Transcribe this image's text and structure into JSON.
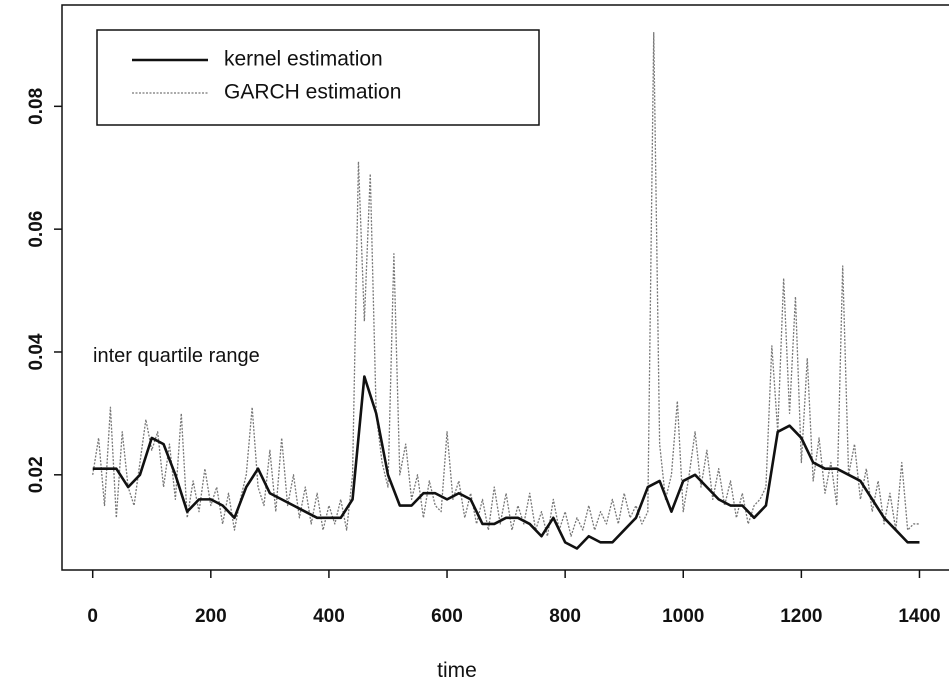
{
  "chart_data": {
    "type": "line",
    "x_label": "time",
    "annotation": "inter quartile range",
    "xlim": [
      -52,
      1450
    ],
    "ylim": [
      0.0045,
      0.0965
    ],
    "xticks": [
      0,
      200,
      400,
      600,
      800,
      1000,
      1200,
      1400
    ],
    "yticks": [
      0.02,
      0.04,
      0.06,
      0.08
    ],
    "legend": "upper left",
    "series": [
      {
        "name": "kernel estimation",
        "color": "#111111",
        "style": "solid",
        "x": [
          0,
          20,
          40,
          60,
          80,
          100,
          120,
          140,
          160,
          180,
          200,
          220,
          240,
          260,
          280,
          300,
          320,
          340,
          360,
          380,
          400,
          420,
          440,
          460,
          480,
          500,
          520,
          540,
          560,
          580,
          600,
          620,
          640,
          660,
          680,
          700,
          720,
          740,
          760,
          780,
          800,
          820,
          840,
          860,
          880,
          900,
          920,
          940,
          960,
          980,
          1000,
          1020,
          1040,
          1060,
          1080,
          1100,
          1120,
          1140,
          1160,
          1180,
          1200,
          1220,
          1240,
          1260,
          1280,
          1300,
          1320,
          1340,
          1360,
          1380,
          1400
        ],
        "values": [
          0.021,
          0.021,
          0.021,
          0.018,
          0.02,
          0.026,
          0.025,
          0.02,
          0.014,
          0.016,
          0.016,
          0.015,
          0.013,
          0.018,
          0.021,
          0.017,
          0.016,
          0.015,
          0.014,
          0.013,
          0.013,
          0.013,
          0.016,
          0.036,
          0.03,
          0.02,
          0.015,
          0.015,
          0.017,
          0.017,
          0.016,
          0.017,
          0.016,
          0.012,
          0.012,
          0.013,
          0.013,
          0.012,
          0.01,
          0.013,
          0.009,
          0.008,
          0.01,
          0.009,
          0.009,
          0.011,
          0.013,
          0.018,
          0.019,
          0.014,
          0.019,
          0.02,
          0.018,
          0.016,
          0.015,
          0.015,
          0.013,
          0.015,
          0.027,
          0.028,
          0.026,
          0.022,
          0.021,
          0.021,
          0.02,
          0.019,
          0.016,
          0.013,
          0.011,
          0.009,
          0.009
        ]
      },
      {
        "name": "GARCH estimation",
        "color": "#777777",
        "style": "dotted",
        "x": [
          0,
          10,
          20,
          30,
          40,
          50,
          60,
          70,
          80,
          90,
          100,
          110,
          120,
          130,
          140,
          150,
          160,
          170,
          180,
          190,
          200,
          210,
          220,
          230,
          240,
          250,
          260,
          270,
          280,
          290,
          300,
          310,
          320,
          330,
          340,
          350,
          360,
          370,
          380,
          390,
          400,
          410,
          420,
          430,
          440,
          450,
          460,
          470,
          480,
          490,
          500,
          510,
          520,
          530,
          540,
          550,
          560,
          570,
          580,
          590,
          600,
          610,
          620,
          630,
          640,
          650,
          660,
          670,
          680,
          690,
          700,
          710,
          720,
          730,
          740,
          750,
          760,
          770,
          780,
          790,
          800,
          810,
          820,
          830,
          840,
          850,
          860,
          870,
          880,
          890,
          900,
          910,
          920,
          930,
          940,
          950,
          960,
          970,
          980,
          990,
          1000,
          1010,
          1020,
          1030,
          1040,
          1050,
          1060,
          1070,
          1080,
          1090,
          1100,
          1110,
          1120,
          1130,
          1140,
          1150,
          1160,
          1170,
          1180,
          1190,
          1200,
          1210,
          1220,
          1230,
          1240,
          1250,
          1260,
          1270,
          1280,
          1290,
          1300,
          1310,
          1320,
          1330,
          1340,
          1350,
          1360,
          1370,
          1380,
          1390,
          1400
        ],
        "values": [
          0.02,
          0.026,
          0.015,
          0.031,
          0.013,
          0.027,
          0.018,
          0.015,
          0.022,
          0.029,
          0.024,
          0.027,
          0.018,
          0.025,
          0.016,
          0.03,
          0.013,
          0.019,
          0.014,
          0.021,
          0.015,
          0.018,
          0.012,
          0.017,
          0.011,
          0.016,
          0.02,
          0.031,
          0.018,
          0.015,
          0.024,
          0.014,
          0.026,
          0.015,
          0.02,
          0.013,
          0.018,
          0.012,
          0.017,
          0.011,
          0.015,
          0.012,
          0.016,
          0.011,
          0.02,
          0.071,
          0.045,
          0.069,
          0.03,
          0.022,
          0.018,
          0.056,
          0.02,
          0.025,
          0.016,
          0.02,
          0.013,
          0.019,
          0.015,
          0.014,
          0.027,
          0.016,
          0.019,
          0.013,
          0.017,
          0.012,
          0.016,
          0.011,
          0.018,
          0.012,
          0.017,
          0.011,
          0.015,
          0.012,
          0.017,
          0.011,
          0.014,
          0.01,
          0.016,
          0.011,
          0.014,
          0.01,
          0.013,
          0.011,
          0.015,
          0.011,
          0.014,
          0.012,
          0.016,
          0.012,
          0.017,
          0.013,
          0.015,
          0.012,
          0.014,
          0.092,
          0.025,
          0.016,
          0.02,
          0.032,
          0.014,
          0.02,
          0.027,
          0.018,
          0.024,
          0.016,
          0.021,
          0.015,
          0.019,
          0.013,
          0.017,
          0.012,
          0.015,
          0.016,
          0.018,
          0.041,
          0.027,
          0.052,
          0.03,
          0.049,
          0.022,
          0.039,
          0.019,
          0.026,
          0.017,
          0.022,
          0.015,
          0.054,
          0.02,
          0.025,
          0.016,
          0.021,
          0.014,
          0.019,
          0.012,
          0.017,
          0.011,
          0.022,
          0.011,
          0.012,
          0.012
        ]
      }
    ]
  }
}
